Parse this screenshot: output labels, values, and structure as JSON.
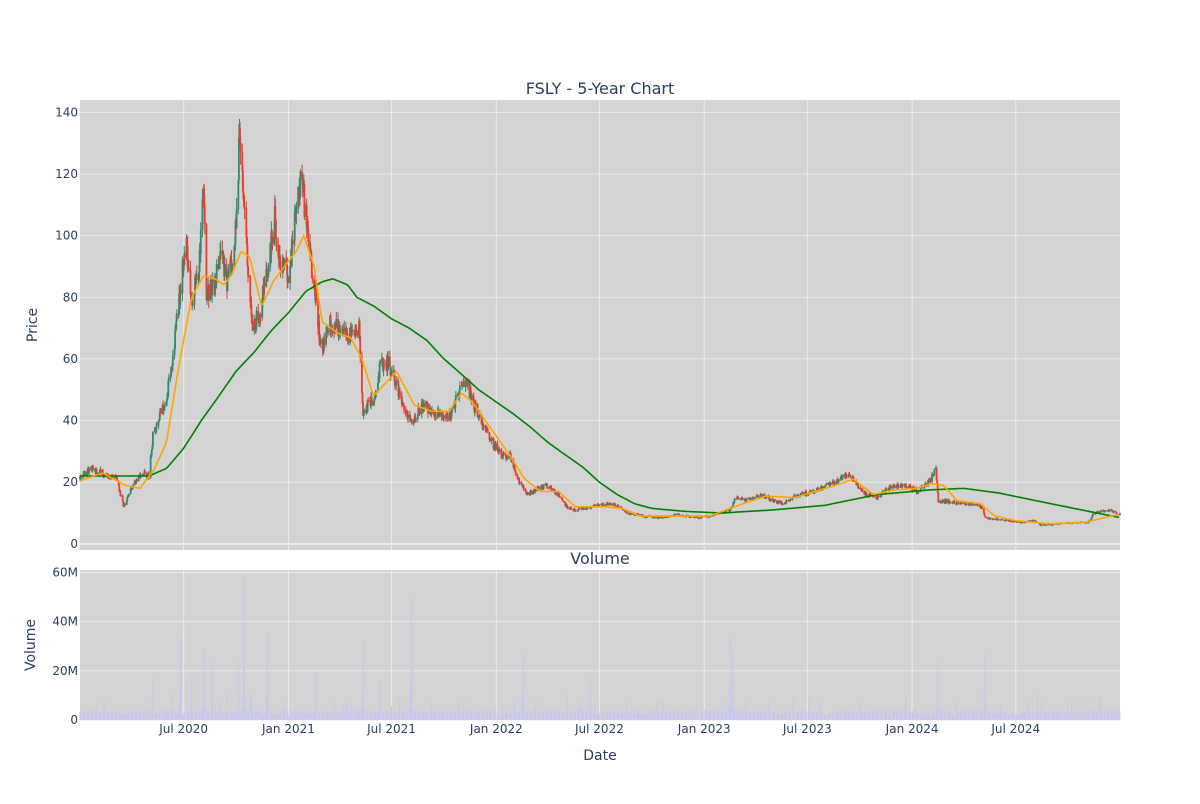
{
  "colors": {
    "plot_bg": "#d3d3d3",
    "grid": "#ebebeb",
    "up": "#2e8b6e",
    "down": "#ef3b2c",
    "ma_short": "#ffa500",
    "ma_long": "#008000",
    "volume": "#c8c8ee",
    "text": "#2a3f5f"
  },
  "chart_data": [
    {
      "type": "candlestick",
      "title": "FSLY - 5-Year Chart",
      "ylabel": "Price",
      "ylim": [
        -2,
        144
      ],
      "yticks": [
        0,
        20,
        40,
        60,
        80,
        100,
        120,
        140
      ],
      "xlim": [
        "2020-01-01",
        "2024-12-31"
      ],
      "grid": true,
      "series": [
        {
          "type": "ohlc",
          "anchors": [
            [
              "2020-01-01",
              21
            ],
            [
              "2020-01-20",
              24.5
            ],
            [
              "2020-02-15",
              22.5
            ],
            [
              "2020-03-05",
              21
            ],
            [
              "2020-03-18",
              12
            ],
            [
              "2020-03-30",
              18
            ],
            [
              "2020-04-20",
              23
            ],
            [
              "2020-05-01",
              22
            ],
            [
              "2020-05-08",
              35
            ],
            [
              "2020-05-20",
              42
            ],
            [
              "2020-06-01",
              47
            ],
            [
              "2020-06-15",
              65
            ],
            [
              "2020-06-25",
              82
            ],
            [
              "2020-07-05",
              98
            ],
            [
              "2020-07-15",
              80
            ],
            [
              "2020-07-28",
              88
            ],
            [
              "2020-08-05",
              116
            ],
            [
              "2020-08-10",
              80
            ],
            [
              "2020-08-25",
              84
            ],
            [
              "2020-09-05",
              96
            ],
            [
              "2020-09-15",
              85
            ],
            [
              "2020-09-28",
              95
            ],
            [
              "2020-10-08",
              135
            ],
            [
              "2020-10-20",
              95
            ],
            [
              "2020-10-30",
              68
            ],
            [
              "2020-11-15",
              78
            ],
            [
              "2020-11-28",
              92
            ],
            [
              "2020-12-08",
              105
            ],
            [
              "2020-12-18",
              90
            ],
            [
              "2021-01-03",
              88
            ],
            [
              "2021-01-15",
              110
            ],
            [
              "2021-01-25",
              118
            ],
            [
              "2021-02-05",
              98
            ],
            [
              "2021-02-20",
              75
            ],
            [
              "2021-02-28",
              62
            ],
            [
              "2021-03-10",
              72
            ],
            [
              "2021-03-25",
              70
            ],
            [
              "2021-04-05",
              71
            ],
            [
              "2021-04-15",
              67
            ],
            [
              "2021-05-05",
              70
            ],
            [
              "2021-05-12",
              43
            ],
            [
              "2021-05-30",
              47
            ],
            [
              "2021-06-10",
              57
            ],
            [
              "2021-06-25",
              59
            ],
            [
              "2021-07-10",
              52
            ],
            [
              "2021-07-25",
              42
            ],
            [
              "2021-08-05",
              40
            ],
            [
              "2021-08-25",
              45
            ],
            [
              "2021-09-15",
              43
            ],
            [
              "2021-10-10",
              41
            ],
            [
              "2021-10-30",
              50
            ],
            [
              "2021-11-10",
              52
            ],
            [
              "2021-11-25",
              44
            ],
            [
              "2021-12-10",
              38
            ],
            [
              "2021-12-28",
              32
            ],
            [
              "2022-01-15",
              28
            ],
            [
              "2022-01-25",
              29
            ],
            [
              "2022-02-10",
              20
            ],
            [
              "2022-02-25",
              16
            ],
            [
              "2022-03-15",
              18
            ],
            [
              "2022-04-01",
              19
            ],
            [
              "2022-04-20",
              16
            ],
            [
              "2022-05-05",
              12
            ],
            [
              "2022-05-20",
              11
            ],
            [
              "2022-06-15",
              12
            ],
            [
              "2022-07-15",
              13
            ],
            [
              "2022-08-05",
              12
            ],
            [
              "2022-08-20",
              10
            ],
            [
              "2022-09-15",
              9
            ],
            [
              "2022-10-15",
              8.5
            ],
            [
              "2022-11-15",
              9.5
            ],
            [
              "2022-12-20",
              8.5
            ],
            [
              "2023-01-10",
              9
            ],
            [
              "2023-02-15",
              11
            ],
            [
              "2023-02-25",
              15
            ],
            [
              "2023-03-15",
              14
            ],
            [
              "2023-04-10",
              16
            ],
            [
              "2023-05-01",
              14
            ],
            [
              "2023-05-20",
              13
            ],
            [
              "2023-06-15",
              16
            ],
            [
              "2023-07-15",
              17
            ],
            [
              "2023-08-05",
              19
            ],
            [
              "2023-08-20",
              20
            ],
            [
              "2023-09-10",
              23
            ],
            [
              "2023-09-20",
              21
            ],
            [
              "2023-10-10",
              16
            ],
            [
              "2023-11-01",
              15
            ],
            [
              "2023-11-20",
              18
            ],
            [
              "2023-12-20",
              19
            ],
            [
              "2024-01-10",
              17
            ],
            [
              "2024-01-30",
              20
            ],
            [
              "2024-02-12",
              24
            ],
            [
              "2024-02-16",
              14
            ],
            [
              "2024-03-15",
              13.5
            ],
            [
              "2024-04-15",
              13
            ],
            [
              "2024-05-02",
              12
            ],
            [
              "2024-05-08",
              8.5
            ],
            [
              "2024-06-15",
              7.5
            ],
            [
              "2024-07-15",
              7
            ],
            [
              "2024-08-01",
              7.5
            ],
            [
              "2024-08-15",
              6
            ],
            [
              "2024-09-15",
              6.5
            ],
            [
              "2024-10-15",
              7
            ],
            [
              "2024-11-05",
              7
            ],
            [
              "2024-11-15",
              10
            ],
            [
              "2024-12-10",
              11
            ],
            [
              "2024-12-31",
              9.5
            ]
          ]
        },
        {
          "type": "line",
          "color_key": "ma_short",
          "anchors": [
            [
              "2020-01-01",
              20.5
            ],
            [
              "2020-02-10",
              23
            ],
            [
              "2020-03-20",
              19
            ],
            [
              "2020-04-15",
              18
            ],
            [
              "2020-05-10",
              24
            ],
            [
              "2020-06-01",
              33
            ],
            [
              "2020-06-20",
              55
            ],
            [
              "2020-07-15",
              80
            ],
            [
              "2020-08-05",
              87
            ],
            [
              "2020-08-25",
              86
            ],
            [
              "2020-09-10",
              84
            ],
            [
              "2020-09-25",
              88
            ],
            [
              "2020-10-10",
              95
            ],
            [
              "2020-10-25",
              93
            ],
            [
              "2020-11-15",
              77
            ],
            [
              "2020-12-05",
              85
            ],
            [
              "2020-12-25",
              90
            ],
            [
              "2021-01-15",
              95
            ],
            [
              "2021-01-28",
              100
            ],
            [
              "2021-02-15",
              90
            ],
            [
              "2021-03-01",
              72
            ],
            [
              "2021-04-01",
              68
            ],
            [
              "2021-04-20",
              67
            ],
            [
              "2021-05-10",
              60
            ],
            [
              "2021-05-30",
              48
            ],
            [
              "2021-06-20",
              52
            ],
            [
              "2021-07-10",
              56
            ],
            [
              "2021-08-10",
              45
            ],
            [
              "2021-09-10",
              43
            ],
            [
              "2021-10-10",
              43
            ],
            [
              "2021-11-01",
              49
            ],
            [
              "2021-11-20",
              46
            ],
            [
              "2021-12-20",
              38
            ],
            [
              "2022-01-20",
              30
            ],
            [
              "2022-02-20",
              21
            ],
            [
              "2022-03-20",
              17
            ],
            [
              "2022-04-20",
              17
            ],
            [
              "2022-05-20",
              12
            ],
            [
              "2022-07-10",
              12
            ],
            [
              "2022-08-10",
              11.5
            ],
            [
              "2022-09-10",
              9
            ],
            [
              "2022-11-10",
              9
            ],
            [
              "2023-01-10",
              9
            ],
            [
              "2023-03-10",
              13
            ],
            [
              "2023-04-20",
              15.5
            ],
            [
              "2023-06-10",
              15
            ],
            [
              "2023-07-15",
              17
            ],
            [
              "2023-08-20",
              19
            ],
            [
              "2023-09-20",
              21
            ],
            [
              "2023-10-25",
              16
            ],
            [
              "2023-12-01",
              17.5
            ],
            [
              "2024-01-10",
              18
            ],
            [
              "2024-02-05",
              19.5
            ],
            [
              "2024-02-25",
              19
            ],
            [
              "2024-03-20",
              14
            ],
            [
              "2024-04-30",
              13
            ],
            [
              "2024-05-25",
              9
            ],
            [
              "2024-07-01",
              7.5
            ],
            [
              "2024-09-01",
              6.5
            ],
            [
              "2024-11-01",
              7
            ],
            [
              "2024-12-15",
              9
            ],
            [
              "2024-12-31",
              9.5
            ]
          ]
        },
        {
          "type": "line",
          "color_key": "ma_long",
          "anchors": [
            [
              "2020-01-01",
              22
            ],
            [
              "2020-03-01",
              22
            ],
            [
              "2020-05-01",
              22
            ],
            [
              "2020-06-01",
              24.5
            ],
            [
              "2020-07-01",
              31
            ],
            [
              "2020-08-01",
              40
            ],
            [
              "2020-09-01",
              48
            ],
            [
              "2020-10-01",
              56
            ],
            [
              "2020-11-01",
              62
            ],
            [
              "2020-12-01",
              69
            ],
            [
              "2021-01-01",
              75
            ],
            [
              "2021-02-01",
              82
            ],
            [
              "2021-03-01",
              85
            ],
            [
              "2021-03-20",
              86
            ],
            [
              "2021-04-15",
              84
            ],
            [
              "2021-05-01",
              80
            ],
            [
              "2021-06-01",
              77
            ],
            [
              "2021-07-01",
              73
            ],
            [
              "2021-08-01",
              70
            ],
            [
              "2021-09-01",
              66
            ],
            [
              "2021-10-01",
              60
            ],
            [
              "2021-11-01",
              55
            ],
            [
              "2021-12-01",
              50
            ],
            [
              "2022-01-01",
              46
            ],
            [
              "2022-02-01",
              42
            ],
            [
              "2022-03-01",
              38
            ],
            [
              "2022-04-01",
              33
            ],
            [
              "2022-05-01",
              29
            ],
            [
              "2022-06-01",
              25
            ],
            [
              "2022-07-01",
              20
            ],
            [
              "2022-08-01",
              16
            ],
            [
              "2022-09-01",
              13
            ],
            [
              "2022-10-01",
              11.5
            ],
            [
              "2022-12-01",
              10.5
            ],
            [
              "2023-02-01",
              10
            ],
            [
              "2023-05-01",
              11
            ],
            [
              "2023-08-01",
              12.5
            ],
            [
              "2023-11-01",
              16
            ],
            [
              "2024-02-01",
              17.5
            ],
            [
              "2024-04-01",
              18
            ],
            [
              "2024-06-01",
              16.5
            ],
            [
              "2024-09-01",
              13
            ],
            [
              "2024-12-31",
              8.5
            ]
          ]
        }
      ]
    },
    {
      "type": "bar",
      "title": "Volume",
      "xlabel": "Date",
      "ylabel": "Volume",
      "ylim": [
        0,
        61000000
      ],
      "yticks": [
        0,
        20000000,
        40000000,
        60000000
      ],
      "ytick_labels": [
        "0",
        "20M",
        "40M",
        "60M"
      ],
      "xticks": [
        "2020-07-01",
        "2021-01-01",
        "2021-07-01",
        "2022-01-01",
        "2022-07-01",
        "2023-01-01",
        "2023-07-01",
        "2024-01-01",
        "2024-07-01"
      ],
      "xtick_labels": [
        "Jul 2020",
        "Jan 2021",
        "Jul 2021",
        "Jan 2022",
        "Jul 2022",
        "Jan 2023",
        "Jul 2023",
        "Jan 2024",
        "Jul 2024"
      ],
      "baseline": 3000000,
      "spikes": [
        [
          "2020-05-08",
          17000000
        ],
        [
          "2020-06-10",
          10000000
        ],
        [
          "2020-06-25",
          34000000
        ],
        [
          "2020-07-15",
          17000000
        ],
        [
          "2020-08-06",
          28000000
        ],
        [
          "2020-08-20",
          23000000
        ],
        [
          "2020-09-15",
          10000000
        ],
        [
          "2020-10-05",
          24000000
        ],
        [
          "2020-10-15",
          58000000
        ],
        [
          "2020-10-25",
          18000000
        ],
        [
          "2020-11-25",
          35000000
        ],
        [
          "2021-02-18",
          20000000
        ],
        [
          "2021-05-12",
          32000000
        ],
        [
          "2021-06-10",
          15000000
        ],
        [
          "2021-08-05",
          49000000
        ],
        [
          "2021-11-05",
          8000000
        ],
        [
          "2022-02-17",
          28000000
        ],
        [
          "2022-05-05",
          11000000
        ],
        [
          "2022-06-15",
          17000000
        ],
        [
          "2023-02-16",
          34000000
        ],
        [
          "2023-02-20",
          27000000
        ],
        [
          "2024-02-15",
          23000000
        ],
        [
          "2024-05-08",
          28000000
        ],
        [
          "2024-08-08",
          11000000
        ]
      ]
    }
  ]
}
